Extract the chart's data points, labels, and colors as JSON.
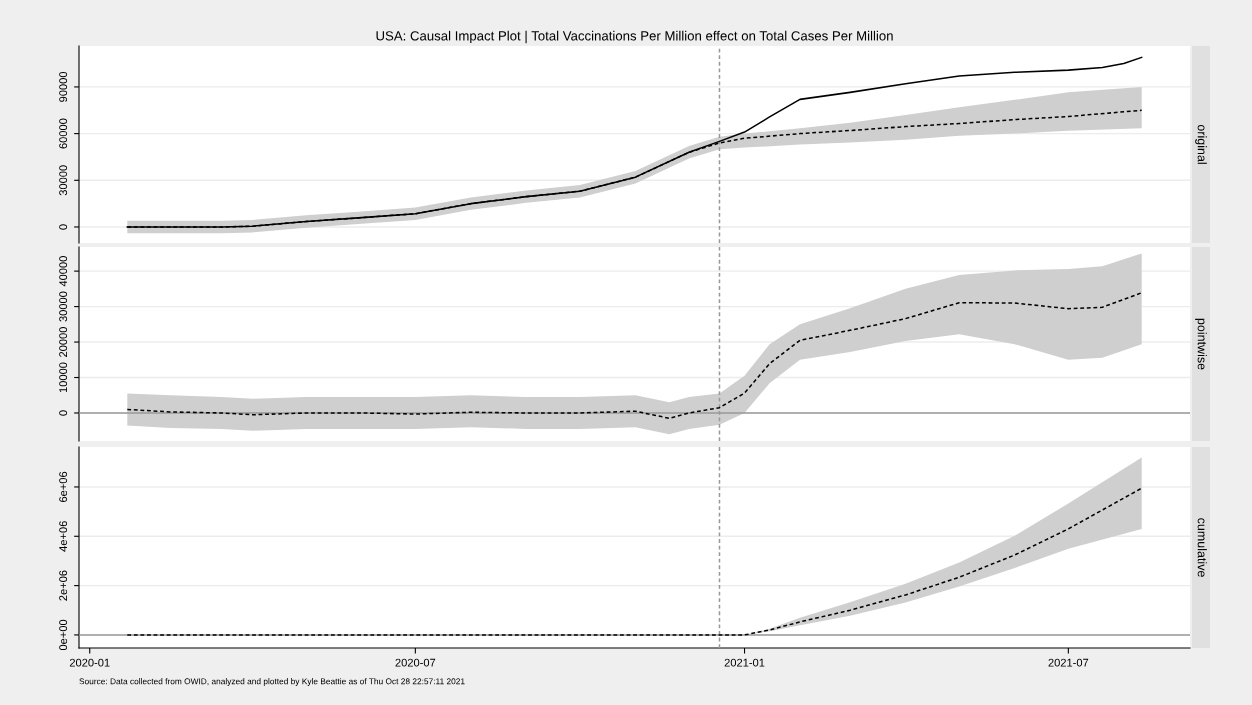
{
  "chart_data": [
    {
      "type": "line",
      "title": "USA: Causal Impact Plot | Total Vaccinations Per Million effect on Total Cases Per Million",
      "annotations": [
        "original"
      ],
      "xlim": [
        "2019-12-26",
        "2021-09-07"
      ],
      "xticks": [
        "2020-01",
        "2020-07",
        "2021-01",
        "2021-07"
      ],
      "ylim": [
        -10300,
        116300
      ],
      "yticks": [
        0,
        30000,
        60000,
        90000
      ],
      "grid": "y",
      "tick_labels": "y",
      "ref_lines": [
        {
          "axis": "x",
          "value": "2020-12-18",
          "color": "#999999",
          "line_style": "dashed"
        }
      ],
      "series": [
        {
          "color": "#000000",
          "line_style": "dashed",
          "x": [
            "2020-01-22",
            "2020-02-15",
            "2020-03-15",
            "2020-04-01",
            "2020-05-01",
            "2020-06-01",
            "2020-07-01",
            "2020-08-01",
            "2020-09-01",
            "2020-10-01",
            "2020-11-01",
            "2020-12-01",
            "2020-12-18",
            "2021-01-01",
            "2021-02-01",
            "2021-03-01",
            "2021-04-01",
            "2021-05-01",
            "2021-06-01",
            "2021-07-01",
            "2021-08-11"
          ],
          "values": [
            0,
            0,
            0,
            500,
            3500,
            6000,
            8500,
            15000,
            19500,
            23000,
            32000,
            48000,
            54000,
            57000,
            60000,
            62000,
            64500,
            66500,
            69000,
            71000,
            75000
          ],
          "lower": [
            -4000,
            -4000,
            -4000,
            -3500,
            -500,
            2000,
            4500,
            11000,
            15500,
            19000,
            28000,
            44000,
            50000,
            51000,
            53000,
            54300,
            56000,
            58600,
            60000,
            61800,
            63400
          ],
          "upper": [
            4000,
            4000,
            4000,
            4500,
            7500,
            10000,
            12500,
            19000,
            23500,
            27000,
            36000,
            52000,
            58000,
            60000,
            63400,
            67000,
            72000,
            77000,
            81700,
            86600,
            90000
          ]
        },
        {
          "color": "#000000",
          "line_style": "solid",
          "x": [
            "2020-01-22",
            "2020-02-15",
            "2020-03-15",
            "2020-04-01",
            "2020-05-01",
            "2020-06-01",
            "2020-07-01",
            "2020-08-01",
            "2020-09-01",
            "2020-10-01",
            "2020-11-01",
            "2020-12-01",
            "2020-12-18",
            "2021-01-01",
            "2021-01-15",
            "2021-02-01",
            "2021-03-01",
            "2021-04-01",
            "2021-05-01",
            "2021-06-01",
            "2021-07-01",
            "2021-07-20",
            "2021-08-01",
            "2021-08-11"
          ],
          "values": [
            0,
            0,
            0,
            500,
            3500,
            6000,
            8500,
            15000,
            19500,
            23000,
            32000,
            48000,
            55000,
            61000,
            70700,
            82000,
            86500,
            92000,
            97000,
            99400,
            100800,
            102500,
            105000,
            109000
          ]
        }
      ]
    },
    {
      "type": "line",
      "annotations": [
        "pointwise"
      ],
      "xlim": [
        "2019-12-26",
        "2021-09-07"
      ],
      "xticks": [
        "2020-01",
        "2020-07",
        "2021-01",
        "2021-07"
      ],
      "ylim": [
        -7900,
        46800
      ],
      "yticks": [
        0,
        10000,
        20000,
        30000,
        40000
      ],
      "grid": "y",
      "tick_labels": "y",
      "ref_lines": [
        {
          "axis": "x",
          "value": "2020-12-18",
          "color": "#999999",
          "line_style": "dashed"
        },
        {
          "axis": "y",
          "value": 0,
          "color": "#999999",
          "line_style": "solid"
        }
      ],
      "series": [
        {
          "color": "#000000",
          "line_style": "dashed",
          "x": [
            "2020-01-22",
            "2020-02-15",
            "2020-03-15",
            "2020-04-01",
            "2020-05-01",
            "2020-06-01",
            "2020-07-01",
            "2020-08-01",
            "2020-09-01",
            "2020-10-01",
            "2020-11-01",
            "2020-11-20",
            "2020-12-01",
            "2020-12-18",
            "2021-01-01",
            "2021-01-15",
            "2021-02-01",
            "2021-03-01",
            "2021-04-01",
            "2021-05-01",
            "2021-06-01",
            "2021-07-01",
            "2021-07-20",
            "2021-08-11"
          ],
          "values": [
            1000,
            300,
            0,
            -500,
            0,
            0,
            -300,
            200,
            0,
            0,
            500,
            -1500,
            0,
            1500,
            5600,
            13900,
            20500,
            23300,
            26600,
            31100,
            31000,
            29400,
            29800,
            33900
          ],
          "lower": [
            -3500,
            -4200,
            -4500,
            -5000,
            -4500,
            -4500,
            -4500,
            -4000,
            -4500,
            -4500,
            -4000,
            -6000,
            -4500,
            -3300,
            0,
            8400,
            15000,
            17200,
            20300,
            22200,
            19400,
            15000,
            15600,
            19400
          ],
          "upper": [
            5500,
            5000,
            4500,
            4000,
            4500,
            4500,
            4500,
            5000,
            4500,
            4500,
            5000,
            3000,
            4500,
            5500,
            10500,
            19400,
            25000,
            29500,
            35000,
            38900,
            40200,
            40600,
            41400,
            45000
          ]
        }
      ]
    },
    {
      "type": "line",
      "annotations": [
        "cumulative",
        "Source: Data collected from OWID, analyzed and plotted by Kyle Beattie as of Thu Oct 28 22:57:11 2021"
      ],
      "xlim": [
        "2019-12-26",
        "2021-09-07"
      ],
      "xticks": [
        "2020-01",
        "2020-07",
        "2021-01",
        "2021-07"
      ],
      "ylim": [
        -530000,
        7620000
      ],
      "yticks": [
        {
          "value": 0,
          "label": "0e+00"
        },
        {
          "value": 2000000,
          "label": "2e+06"
        },
        {
          "value": 4000000,
          "label": "4e+06"
        },
        {
          "value": 6000000,
          "label": "6e+06"
        }
      ],
      "grid": "y",
      "ref_lines": [
        {
          "axis": "x",
          "value": "2020-12-18",
          "color": "#999999",
          "line_style": "dashed"
        },
        {
          "axis": "y",
          "value": 0,
          "color": "#999999",
          "line_style": "solid"
        }
      ],
      "series": [
        {
          "color": "#000000",
          "line_style": "dashed",
          "x": [
            "2020-01-22",
            "2020-12-18",
            "2021-01-01",
            "2021-01-15",
            "2021-02-01",
            "2021-03-01",
            "2021-04-01",
            "2021-05-01",
            "2021-06-01",
            "2021-07-01",
            "2021-08-11"
          ],
          "values": [
            0,
            0,
            0,
            200000,
            530000,
            1000000,
            1620000,
            2340000,
            3240000,
            4300000,
            5950000
          ],
          "lower": [
            0,
            0,
            0,
            150000,
            390000,
            780000,
            1310000,
            1960000,
            2710000,
            3490000,
            4300000
          ],
          "upper": [
            0,
            0,
            0,
            250000,
            700000,
            1320000,
            2080000,
            2940000,
            4020000,
            5330000,
            7190000
          ]
        }
      ]
    }
  ]
}
